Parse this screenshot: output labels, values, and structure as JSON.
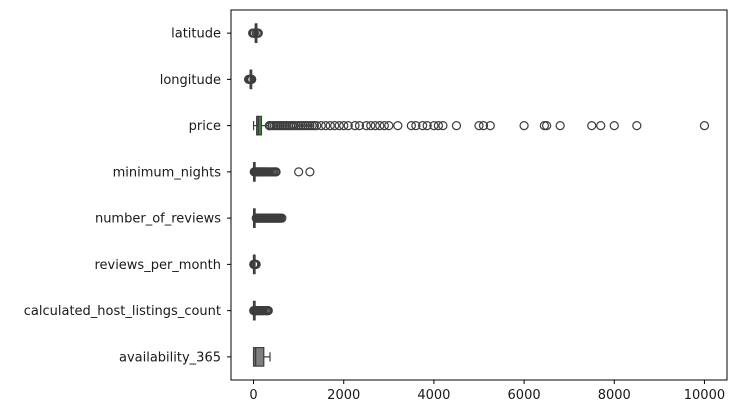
{
  "chart_data": {
    "type": "boxplot-horizontal",
    "orientation": "horizontal",
    "xlim": [
      -500,
      10500
    ],
    "xticks": [
      0,
      2000,
      4000,
      6000,
      8000,
      10000
    ],
    "xtick_labels": [
      "0",
      "2000",
      "4000",
      "6000",
      "8000",
      "10000"
    ],
    "grid": false,
    "categories": [
      "latitude",
      "longitude",
      "price",
      "minimum_nights",
      "number_of_reviews",
      "reviews_per_month",
      "calculated_host_listings_count",
      "availability_365"
    ],
    "series": [
      {
        "category": "latitude",
        "color": "#3a5fa0",
        "whisker_low": 40.5,
        "q1": 40.69,
        "median": 40.72,
        "q3": 40.76,
        "whisker_high": 40.9,
        "outliers": [
          -20,
          0,
          20,
          60,
          90,
          105
        ]
      },
      {
        "category": "longitude",
        "color": "#d9822b",
        "whisker_low": -74.2,
        "q1": -73.98,
        "median": -73.95,
        "q3": -73.94,
        "whisker_high": -73.7,
        "outliers": [
          -110,
          -90,
          -75,
          -55,
          -40
        ]
      },
      {
        "category": "price",
        "color": "#3a8a3a",
        "whisker_low": 0,
        "q1": 69,
        "median": 106,
        "q3": 175,
        "whisker_high": 334,
        "outliers": [
          350,
          380,
          420,
          460,
          500,
          540,
          580,
          620,
          660,
          700,
          740,
          780,
          820,
          860,
          900,
          950,
          1000,
          1050,
          1100,
          1150,
          1200,
          1250,
          1300,
          1350,
          1400,
          1500,
          1600,
          1700,
          1800,
          1900,
          2000,
          2100,
          2250,
          2350,
          2500,
          2600,
          2700,
          2800,
          2900,
          3000,
          3200,
          3500,
          3600,
          3750,
          3850,
          4000,
          4100,
          4200,
          4500,
          5000,
          5100,
          5250,
          6000,
          6450,
          6500,
          6800,
          7500,
          7700,
          8000,
          8500,
          10000
        ]
      },
      {
        "category": "minimum_nights",
        "color": "#c0392b",
        "whisker_low": 1,
        "q1": 1,
        "median": 3,
        "q3": 5,
        "whisker_high": 11,
        "outliers": [
          15,
          30,
          50,
          70,
          90,
          110,
          130,
          150,
          170,
          190,
          210,
          230,
          250,
          270,
          300,
          330,
          360,
          390,
          420,
          450,
          480,
          500,
          1000,
          1250
        ]
      },
      {
        "category": "number_of_reviews",
        "color": "#8e6bb8",
        "whisker_low": 0,
        "q1": 1,
        "median": 5,
        "q3": 24,
        "whisker_high": 58,
        "outliers": [
          60,
          80,
          100,
          120,
          140,
          160,
          180,
          200,
          220,
          240,
          260,
          280,
          300,
          320,
          340,
          360,
          380,
          400,
          420,
          440,
          460,
          480,
          500,
          520,
          540,
          560,
          580,
          600,
          629
        ]
      },
      {
        "category": "reviews_per_month",
        "color": "#8c564b",
        "whisker_low": 0,
        "q1": 0.19,
        "median": 0.72,
        "q3": 2.02,
        "whisker_high": 4.8,
        "outliers": [
          5,
          8,
          12,
          16,
          20,
          25,
          30,
          40,
          50,
          58
        ]
      },
      {
        "category": "calculated_host_listings_count",
        "color": "#e377c2",
        "whisker_low": 1,
        "q1": 1,
        "median": 1,
        "q3": 2,
        "whisker_high": 3,
        "outliers": [
          4,
          10,
          20,
          30,
          50,
          70,
          90,
          100,
          120,
          140,
          160,
          180,
          200,
          230,
          260,
          290,
          310,
          327
        ]
      },
      {
        "category": "availability_365",
        "color": "#7f7f7f",
        "whisker_low": 0,
        "q1": 0,
        "median": 45,
        "q3": 227,
        "whisker_high": 365,
        "outliers": []
      }
    ]
  }
}
